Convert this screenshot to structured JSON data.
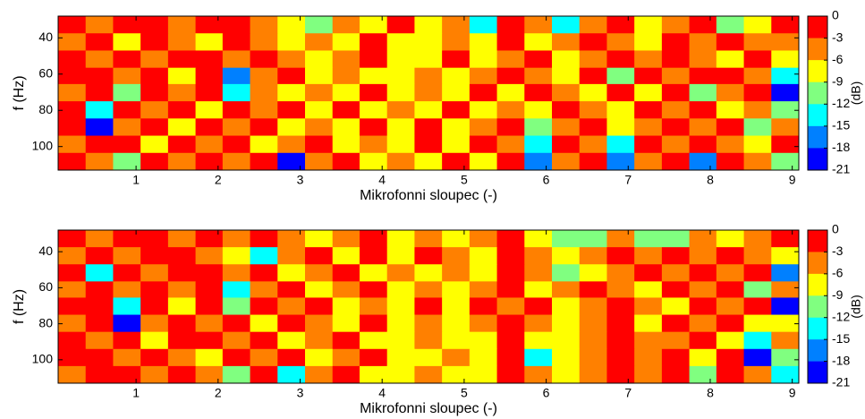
{
  "chart_data": [
    {
      "type": "heatmap",
      "xlabel": "Mikrofonni sloupec (-)",
      "ylabel": "f (Hz)",
      "colorbar_label": "(dB)",
      "xlim": [
        0.05,
        9.08
      ],
      "ylim": [
        28,
        113
      ],
      "y_inverted": true,
      "xticks": [
        1,
        2,
        3,
        4,
        5,
        6,
        7,
        8,
        9
      ],
      "yticks": [
        40,
        60,
        80,
        100
      ],
      "colorbar_ticks": [
        0,
        -3,
        -6,
        -9,
        -12,
        -15,
        -18,
        -21
      ],
      "colors": [
        "#ff0000",
        "#ff8000",
        "#ffff00",
        "#80ff80",
        "#00ffff",
        "#0080ff",
        "#0000ff"
      ],
      "x": [
        0.22,
        0.55,
        0.89,
        1.22,
        1.56,
        1.89,
        2.22,
        2.56,
        2.89,
        3.23,
        3.56,
        3.89,
        4.23,
        4.56,
        4.9,
        5.23,
        5.57,
        5.9,
        6.24,
        6.57,
        6.91,
        7.24,
        7.58,
        7.91,
        8.24,
        8.58,
        8.91
      ],
      "y": [
        33,
        42,
        52,
        61,
        70,
        80,
        89,
        99,
        108
      ],
      "z": [
        [
          -1,
          -4,
          -1,
          -1,
          -4,
          -1,
          -1,
          -4,
          -7,
          -10,
          -4,
          -7,
          -1,
          -7,
          -4,
          -13,
          -1,
          -4,
          -13,
          -4,
          -1,
          -7,
          -4,
          -1,
          -10,
          -7,
          -1
        ],
        [
          -4,
          -1,
          -7,
          -1,
          -4,
          -7,
          -1,
          -4,
          -7,
          -4,
          -7,
          -1,
          -7,
          -7,
          -4,
          -7,
          -1,
          -7,
          -4,
          -1,
          -4,
          -7,
          -1,
          -4,
          -1,
          -4,
          -4
        ],
        [
          -1,
          -4,
          -1,
          -4,
          -1,
          -1,
          -4,
          -1,
          -4,
          -7,
          -4,
          -1,
          -7,
          -7,
          -1,
          -7,
          -4,
          -1,
          -7,
          -4,
          -1,
          -4,
          -1,
          -4,
          -7,
          -1,
          -7
        ],
        [
          -1,
          -1,
          -4,
          -1,
          -7,
          -1,
          -16,
          -4,
          -1,
          -7,
          -4,
          -7,
          -7,
          -4,
          -7,
          -4,
          -1,
          -4,
          -7,
          -1,
          -10,
          -1,
          -4,
          -1,
          -1,
          -4,
          -13
        ],
        [
          -4,
          -1,
          -10,
          -1,
          -4,
          -1,
          -13,
          -4,
          -7,
          -4,
          -7,
          -1,
          -7,
          -4,
          -7,
          -1,
          -7,
          -1,
          -4,
          -7,
          -1,
          -7,
          -1,
          -10,
          -4,
          -1,
          -19
        ],
        [
          -1,
          -13,
          -1,
          -4,
          -1,
          -7,
          -1,
          -4,
          -1,
          -7,
          -1,
          -7,
          -4,
          -7,
          -1,
          -7,
          -4,
          -7,
          -1,
          -4,
          -7,
          -1,
          -4,
          -1,
          -7,
          -4,
          -10
        ],
        [
          -1,
          -19,
          -4,
          -1,
          -7,
          -1,
          -4,
          -1,
          -7,
          -4,
          -7,
          -1,
          -7,
          -1,
          -7,
          -4,
          -1,
          -10,
          -4,
          -1,
          -7,
          -4,
          -1,
          -4,
          -1,
          -10,
          -4
        ],
        [
          -4,
          -1,
          -1,
          -7,
          -1,
          -4,
          -1,
          -7,
          -4,
          -1,
          -7,
          -4,
          -7,
          -1,
          -7,
          -1,
          -4,
          -13,
          -1,
          -4,
          -13,
          -1,
          -4,
          -1,
          -4,
          -7,
          -1
        ],
        [
          -1,
          -4,
          -10,
          -1,
          -4,
          -1,
          -4,
          -1,
          -19,
          -4,
          -1,
          -7,
          -4,
          -7,
          -1,
          -7,
          -1,
          -16,
          -4,
          -1,
          -16,
          -4,
          -1,
          -16,
          -1,
          -4,
          -10
        ]
      ]
    },
    {
      "type": "heatmap",
      "xlabel": "Mikrofonni sloupec (-)",
      "ylabel": "f (Hz)",
      "colorbar_label": "(dB)",
      "xlim": [
        0.05,
        9.08
      ],
      "ylim": [
        28,
        113
      ],
      "y_inverted": true,
      "xticks": [
        1,
        2,
        3,
        4,
        5,
        6,
        7,
        8,
        9
      ],
      "yticks": [
        40,
        60,
        80,
        100
      ],
      "colorbar_ticks": [
        0,
        -3,
        -6,
        -9,
        -12,
        -15,
        -18,
        -21
      ],
      "colors": [
        "#ff0000",
        "#ff8000",
        "#ffff00",
        "#80ff80",
        "#00ffff",
        "#0080ff",
        "#0000ff"
      ],
      "x": [
        0.22,
        0.55,
        0.89,
        1.22,
        1.56,
        1.89,
        2.22,
        2.56,
        2.89,
        3.23,
        3.56,
        3.89,
        4.23,
        4.56,
        4.9,
        5.23,
        5.57,
        5.9,
        6.24,
        6.57,
        6.91,
        7.24,
        7.58,
        7.91,
        8.24,
        8.58,
        8.91
      ],
      "y": [
        33,
        42,
        52,
        61,
        70,
        80,
        89,
        99,
        108
      ],
      "z": [
        [
          -1,
          -4,
          -1,
          -1,
          -4,
          -1,
          -4,
          -1,
          -4,
          -7,
          -4,
          -1,
          -7,
          -4,
          -7,
          -4,
          -1,
          -7,
          -10,
          -10,
          -4,
          -10,
          -10,
          -4,
          -7,
          -4,
          -1
        ],
        [
          -4,
          -1,
          -4,
          -1,
          -1,
          -4,
          -7,
          -13,
          -4,
          -1,
          -7,
          -1,
          -7,
          -1,
          -4,
          -7,
          -1,
          -4,
          -7,
          -4,
          -1,
          -4,
          -1,
          -4,
          -1,
          -4,
          -7
        ],
        [
          -1,
          -13,
          -1,
          -4,
          -1,
          -1,
          -4,
          -1,
          -7,
          -4,
          -1,
          -7,
          -4,
          -7,
          -4,
          -7,
          -1,
          -4,
          -10,
          -7,
          -4,
          -1,
          -4,
          -1,
          -4,
          -1,
          -16
        ],
        [
          -4,
          -1,
          -4,
          -1,
          -4,
          -1,
          -13,
          -4,
          -1,
          -7,
          -4,
          -1,
          -7,
          -4,
          -7,
          -4,
          -1,
          -7,
          -4,
          -1,
          -4,
          -7,
          -1,
          -4,
          -1,
          -10,
          -4
        ],
        [
          -1,
          -1,
          -13,
          -1,
          -7,
          -1,
          -10,
          -1,
          -4,
          -1,
          -7,
          -4,
          -7,
          -1,
          -7,
          -1,
          -4,
          -1,
          -7,
          -4,
          -1,
          -4,
          -7,
          -1,
          -4,
          -1,
          -19
        ],
        [
          -4,
          -1,
          -19,
          -4,
          -1,
          -4,
          -1,
          -7,
          -1,
          -4,
          -7,
          -1,
          -7,
          -4,
          -7,
          -4,
          -1,
          -4,
          -7,
          -4,
          -1,
          -7,
          -1,
          -4,
          -1,
          -7,
          -7
        ],
        [
          -1,
          -4,
          -1,
          -7,
          -1,
          -1,
          -4,
          -1,
          -7,
          -4,
          -1,
          -7,
          -7,
          -4,
          -7,
          -7,
          -1,
          -7,
          -7,
          -4,
          -1,
          -4,
          -4,
          -1,
          -7,
          -13,
          -4
        ],
        [
          -1,
          -1,
          -4,
          -1,
          -4,
          -7,
          -1,
          -4,
          -1,
          -7,
          -4,
          -1,
          -7,
          -7,
          -4,
          -7,
          -1,
          -13,
          -7,
          -4,
          -1,
          -4,
          -1,
          -7,
          -1,
          -19,
          -10
        ],
        [
          -4,
          -1,
          -1,
          -4,
          -1,
          -4,
          -10,
          -1,
          -13,
          -4,
          -1,
          -7,
          -7,
          -4,
          -7,
          -7,
          -1,
          -4,
          -7,
          -4,
          -1,
          -4,
          -1,
          -10,
          -1,
          -4,
          -13
        ]
      ]
    }
  ]
}
